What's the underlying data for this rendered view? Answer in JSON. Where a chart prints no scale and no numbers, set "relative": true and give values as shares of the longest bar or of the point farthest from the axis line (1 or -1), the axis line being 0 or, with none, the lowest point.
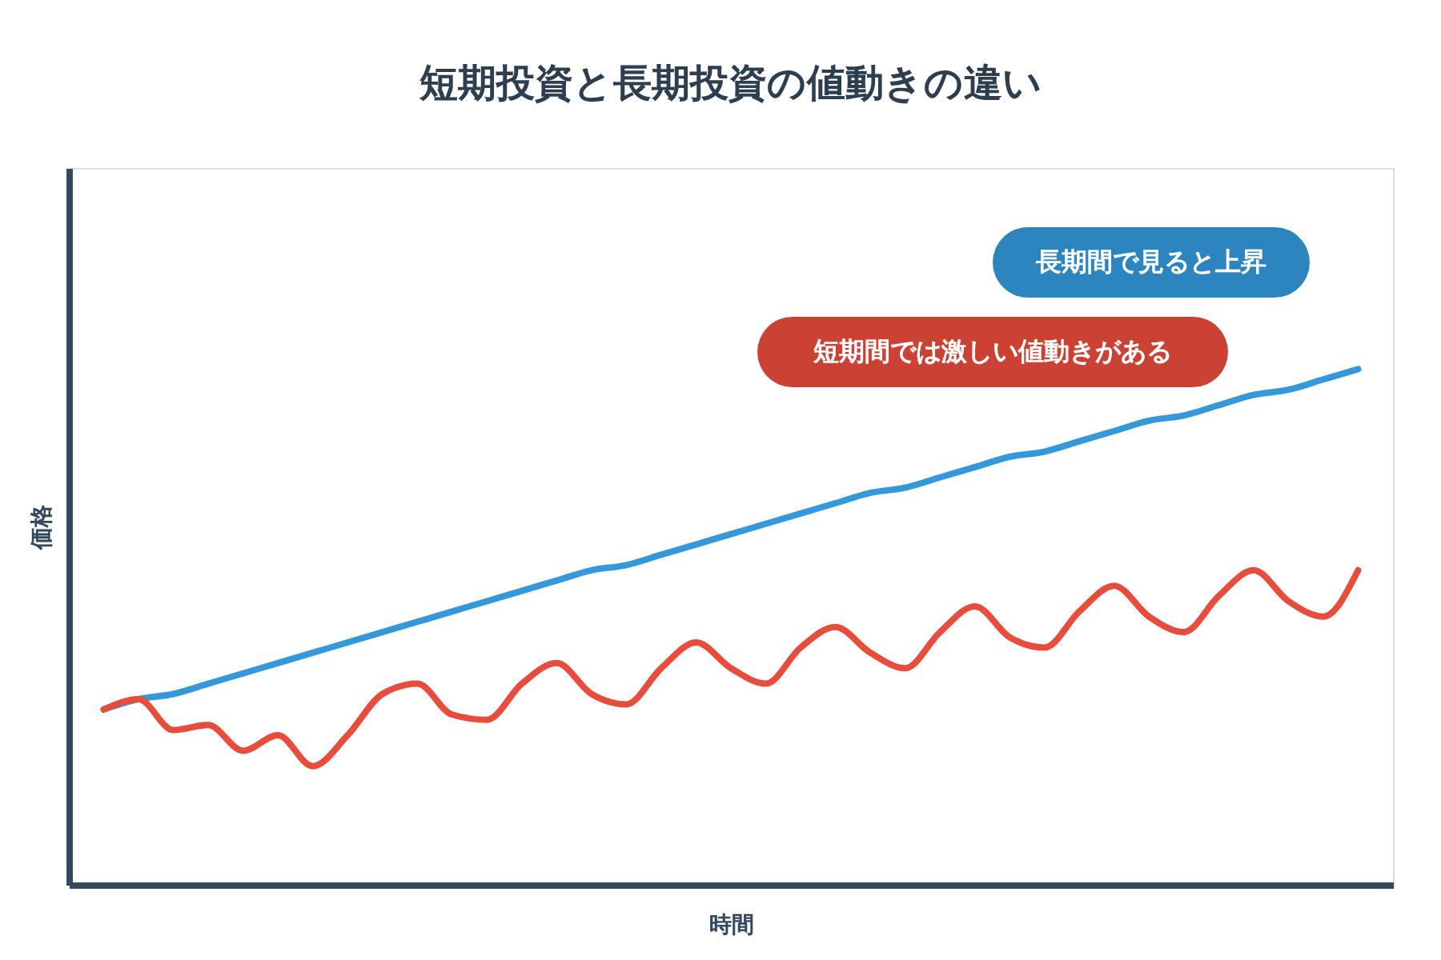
{
  "chart_data": {
    "type": "line",
    "title": "短期投資と長期投資の値動きの違い",
    "xlabel": "時間",
    "ylabel": "価格",
    "relative": true,
    "tick_labels": false,
    "line_style": "solid",
    "marker": "none",
    "categories": [
      null,
      null,
      null,
      null,
      null,
      null,
      null,
      null,
      null,
      null,
      null,
      null,
      null,
      null,
      null,
      null,
      null,
      null,
      null,
      null,
      null,
      null,
      null,
      null,
      null,
      null,
      null,
      null,
      null,
      null,
      null,
      null,
      null,
      null,
      null,
      null,
      null
    ],
    "series": [
      {
        "color": "#3498db",
        "values": [
          0.34,
          0.36,
          0.37,
          0.39,
          0.41,
          0.43,
          0.45,
          0.47,
          0.49,
          0.51,
          0.53,
          0.55,
          0.57,
          0.59,
          0.61,
          0.62,
          0.64,
          0.66,
          0.68,
          0.7,
          0.72,
          0.74,
          0.76,
          0.77,
          0.79,
          0.81,
          0.83,
          0.84,
          0.86,
          0.88,
          0.9,
          0.91,
          0.93,
          0.95,
          0.96,
          0.98,
          1.0
        ]
      },
      {
        "color": "#e74c3c",
        "values": [
          0.34,
          0.36,
          0.3,
          0.31,
          0.26,
          0.29,
          0.23,
          0.29,
          0.37,
          0.39,
          0.33,
          0.32,
          0.39,
          0.43,
          0.37,
          0.35,
          0.42,
          0.47,
          0.42,
          0.39,
          0.46,
          0.5,
          0.45,
          0.42,
          0.49,
          0.54,
          0.48,
          0.46,
          0.53,
          0.58,
          0.52,
          0.49,
          0.56,
          0.61,
          0.55,
          0.52,
          0.61
        ]
      }
    ],
    "annotations": [
      "長期間で見ると上昇",
      "短期間では激しい値動きがある"
    ]
  }
}
